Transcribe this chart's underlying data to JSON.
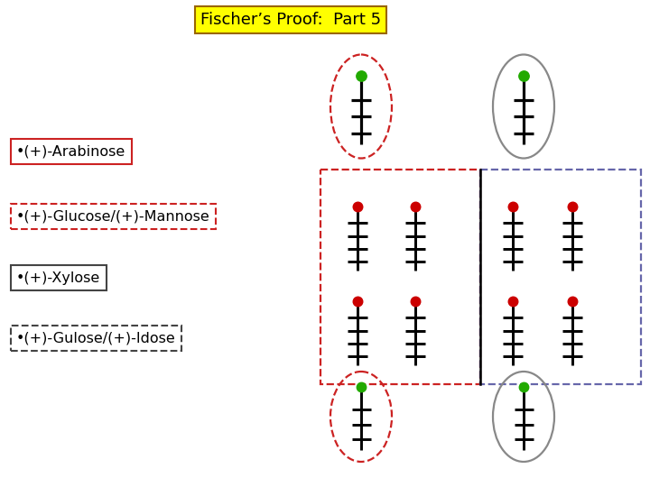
{
  "title": "Fischer’s Proof:  Part 5",
  "title_bg": "#FFFF00",
  "title_fontsize": 13,
  "labels": [
    {
      "text": "•(+)-Arabinose",
      "border": "solid",
      "color": "#CC2222"
    },
    {
      "text": "•(+)-Glucose/(+)-Mannose",
      "border": "dashed",
      "color": "#CC2222"
    },
    {
      "text": "•(+)-Xylose",
      "border": "solid",
      "color": "#444444"
    },
    {
      "text": "•(+)-Gulose/(+)-Idose",
      "border": "dashed",
      "color": "#444444"
    }
  ],
  "bg_color": "white",
  "red_dot": "#CC0000",
  "green_dot": "#22AA00",
  "left_rect_color": "#CC2222",
  "right_rect_color": "#6666AA",
  "top_left_oval_color": "#CC2222",
  "top_right_oval_color": "#888888",
  "bot_left_oval_color": "#CC2222",
  "bot_right_oval_color": "#888888"
}
